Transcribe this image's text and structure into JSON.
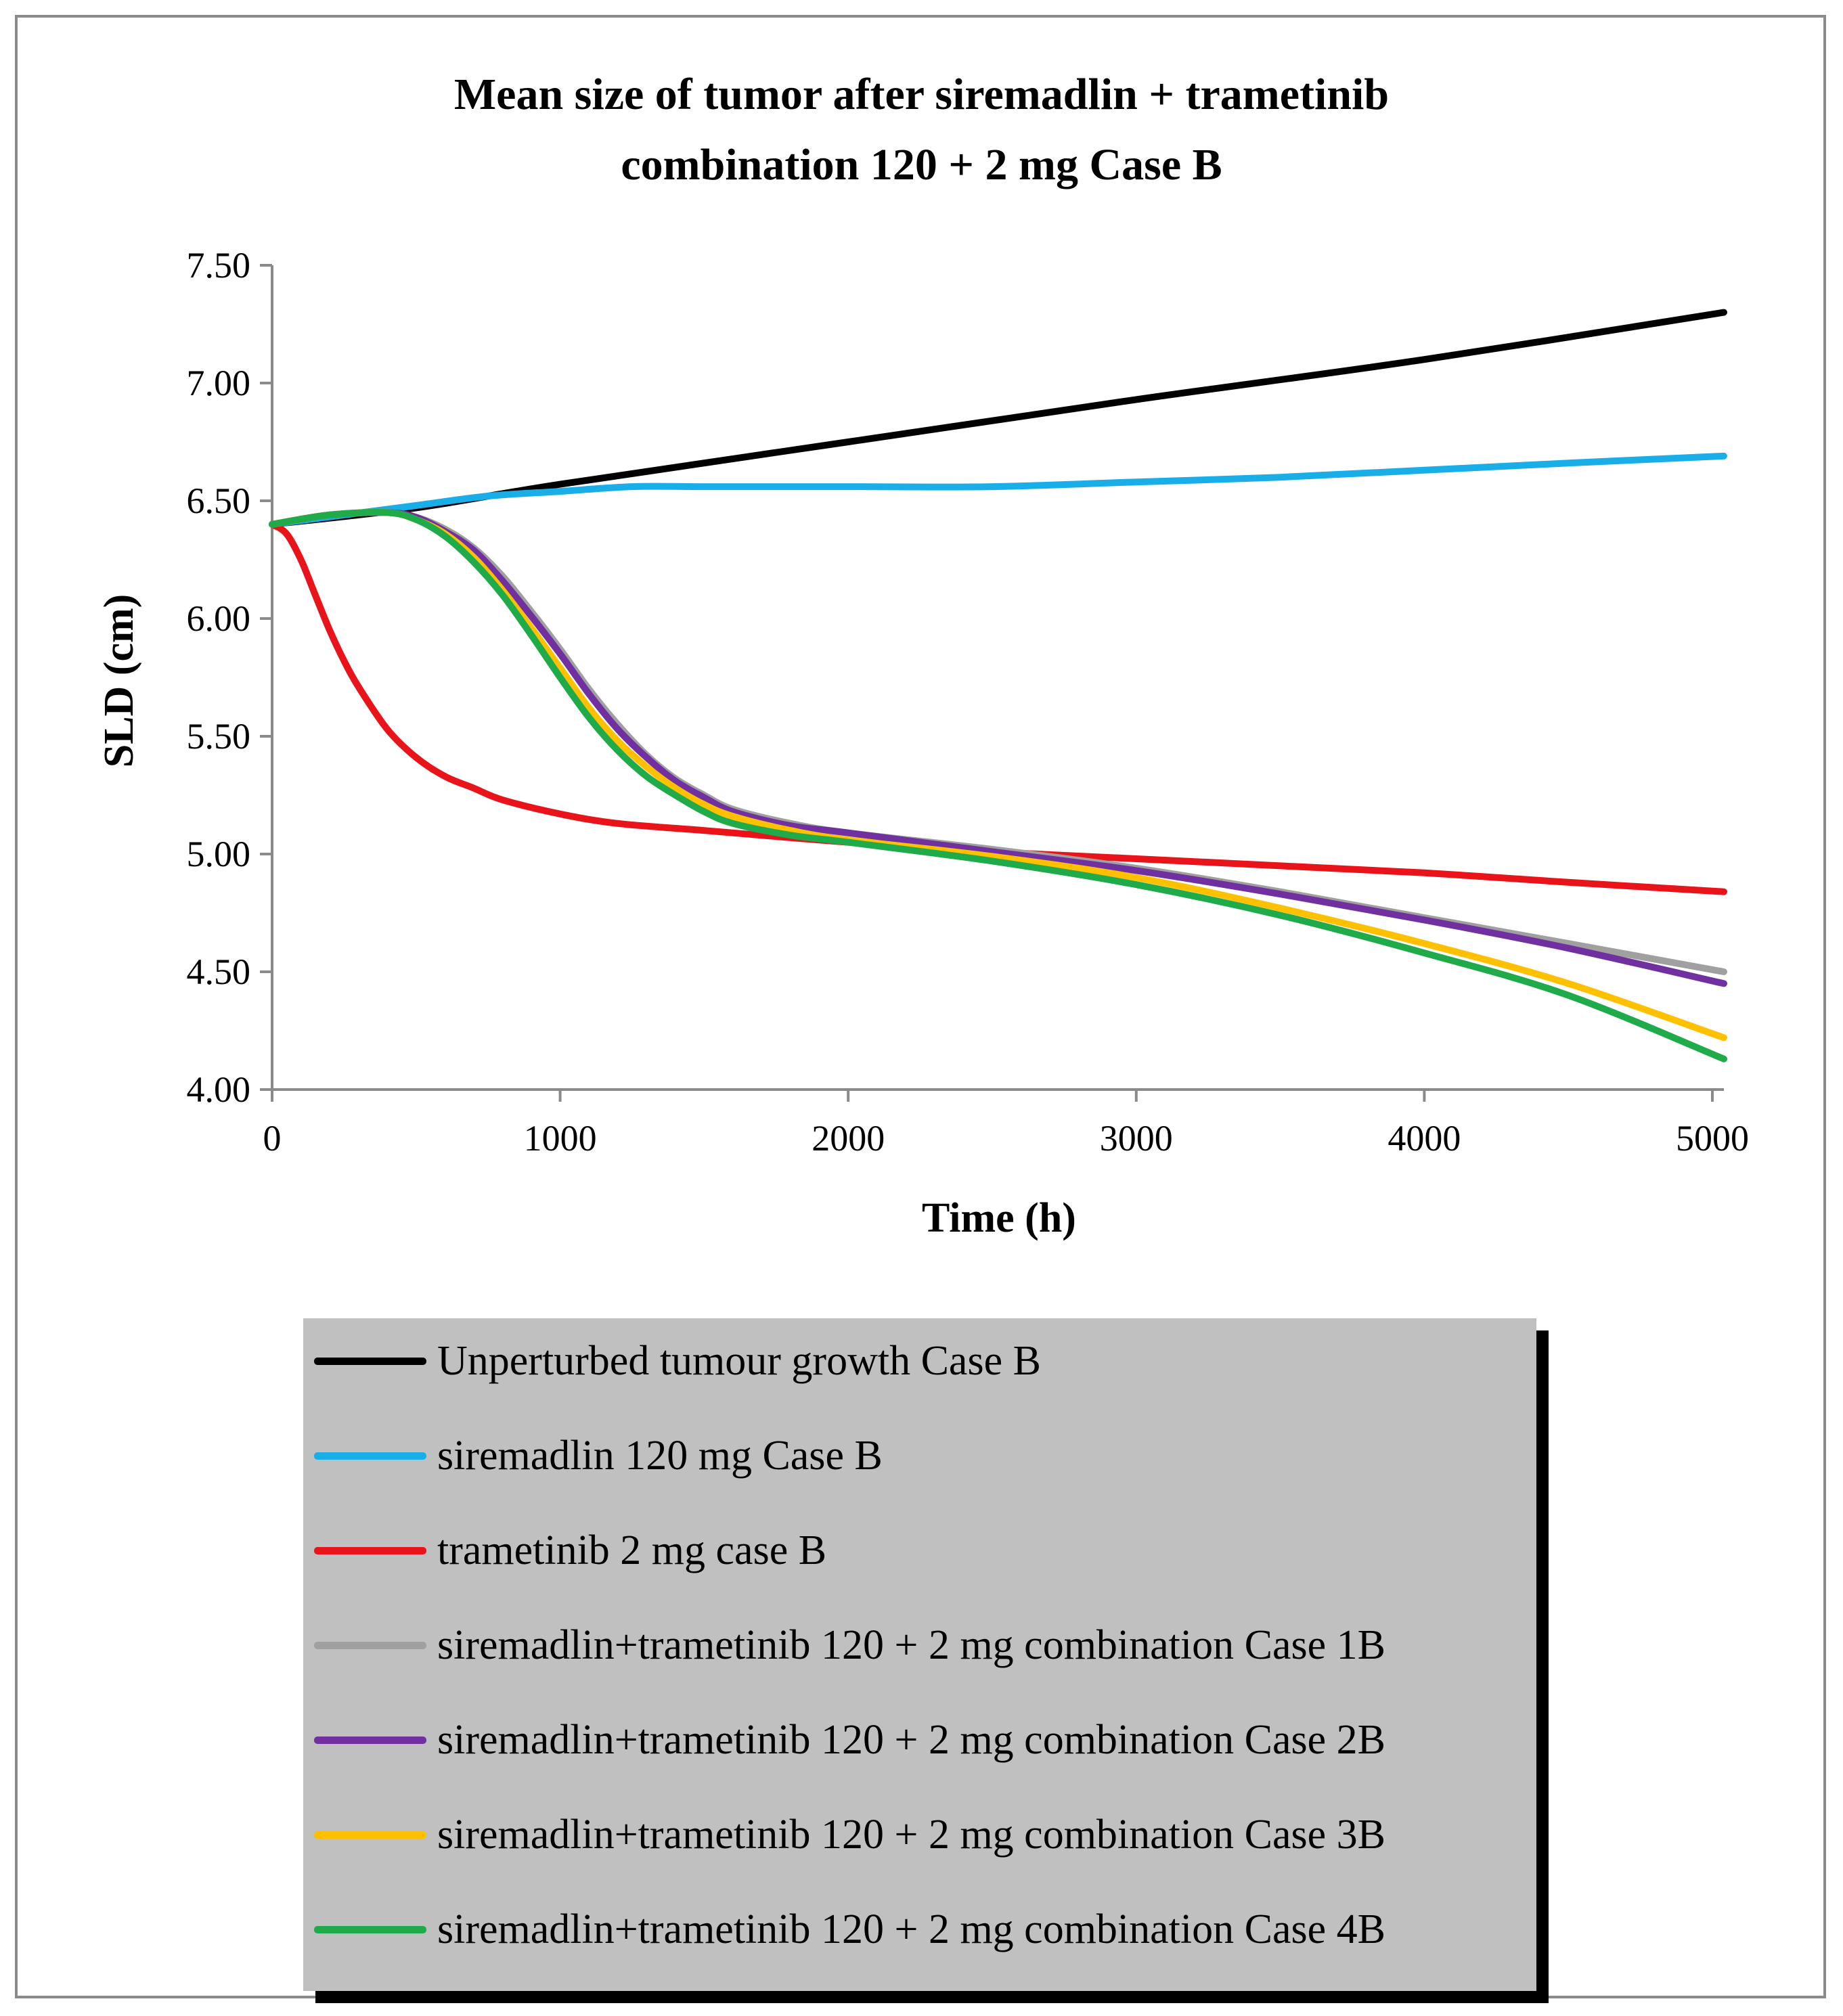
{
  "chart_data": {
    "type": "line",
    "title_lines": [
      "Mean size of tumor after siremadlin + trametinib",
      "combination 120 + 2 mg Case B"
    ],
    "xlabel": "Time (h)",
    "ylabel": "SLD (cm)",
    "xlim": [
      0,
      5040
    ],
    "ylim": [
      4.0,
      7.5
    ],
    "x_ticks": [
      0,
      1000,
      2000,
      3000,
      4000,
      5000
    ],
    "x_tick_labels": [
      "0",
      "1000",
      "2000",
      "3000",
      "4000",
      "5000"
    ],
    "y_ticks": [
      4.0,
      4.5,
      5.0,
      5.5,
      6.0,
      6.5,
      7.0,
      7.5
    ],
    "y_tick_labels": [
      "4.00",
      "4.50",
      "5.00",
      "5.50",
      "6.00",
      "6.50",
      "7.00",
      "7.50"
    ],
    "grid": false,
    "legend_position": "bottom",
    "series": [
      {
        "name": "Unperturbed tumour growth Case B",
        "color": "#000000",
        "x": [
          0,
          500,
          1000,
          2000,
          3000,
          4000,
          5040
        ],
        "y": [
          6.4,
          6.47,
          6.57,
          6.75,
          6.93,
          7.1,
          7.3
        ]
      },
      {
        "name": "siremadlin 120 mg Case B",
        "color": "#1aaee8",
        "x": [
          0,
          250,
          500,
          750,
          1000,
          1250,
          1500,
          2000,
          2500,
          3000,
          3500,
          4000,
          4500,
          5040
        ],
        "y": [
          6.4,
          6.44,
          6.48,
          6.52,
          6.54,
          6.56,
          6.56,
          6.56,
          6.56,
          6.58,
          6.6,
          6.63,
          6.66,
          6.69
        ]
      },
      {
        "name": "trametinib 2 mg case B",
        "color": "#e8141a",
        "x": [
          0,
          50,
          100,
          150,
          200,
          250,
          300,
          400,
          500,
          600,
          700,
          800,
          1000,
          1200,
          1500,
          2000,
          2500,
          3000,
          3500,
          4000,
          4500,
          5040
        ],
        "y": [
          6.4,
          6.36,
          6.25,
          6.1,
          5.95,
          5.82,
          5.71,
          5.53,
          5.41,
          5.33,
          5.28,
          5.23,
          5.17,
          5.13,
          5.1,
          5.05,
          5.01,
          4.98,
          4.95,
          4.92,
          4.88,
          4.84
        ]
      },
      {
        "name": "siremadlin+trametinib 120 + 2 mg combination Case 1B",
        "color": "#a0a0a0",
        "x": [
          0,
          200,
          400,
          500,
          600,
          700,
          800,
          900,
          1000,
          1100,
          1200,
          1300,
          1400,
          1500,
          1600,
          1800,
          2000,
          2500,
          3000,
          3500,
          4000,
          4500,
          5040
        ],
        "y": [
          6.4,
          6.44,
          6.45,
          6.43,
          6.38,
          6.3,
          6.18,
          6.03,
          5.87,
          5.7,
          5.55,
          5.42,
          5.32,
          5.25,
          5.19,
          5.13,
          5.09,
          5.02,
          4.94,
          4.84,
          4.73,
          4.62,
          4.5
        ]
      },
      {
        "name": "siremadlin+trametinib 120 + 2 mg combination Case 2B",
        "color": "#7030a0",
        "x": [
          0,
          200,
          400,
          500,
          600,
          700,
          800,
          900,
          1000,
          1100,
          1200,
          1300,
          1400,
          1500,
          1600,
          1800,
          2000,
          2500,
          3000,
          3500,
          4000,
          4500,
          5040
        ],
        "y": [
          6.4,
          6.44,
          6.45,
          6.43,
          6.37,
          6.29,
          6.16,
          6.01,
          5.85,
          5.68,
          5.53,
          5.41,
          5.31,
          5.24,
          5.18,
          5.12,
          5.09,
          5.01,
          4.93,
          4.83,
          4.72,
          4.6,
          4.45
        ]
      },
      {
        "name": "siremadlin+trametinib 120 + 2 mg combination Case 3B",
        "color": "#ffc000",
        "x": [
          0,
          200,
          400,
          500,
          600,
          700,
          800,
          900,
          1000,
          1100,
          1200,
          1300,
          1400,
          1500,
          1600,
          1800,
          2000,
          2500,
          3000,
          3500,
          4000,
          4500,
          5040
        ],
        "y": [
          6.4,
          6.44,
          6.45,
          6.42,
          6.36,
          6.26,
          6.12,
          5.96,
          5.79,
          5.62,
          5.48,
          5.37,
          5.28,
          5.21,
          5.16,
          5.1,
          5.06,
          4.99,
          4.9,
          4.77,
          4.62,
          4.45,
          4.22
        ]
      },
      {
        "name": "siremadlin+trametinib 120 + 2 mg combination Case 4B",
        "color": "#1fab4a",
        "x": [
          0,
          200,
          400,
          500,
          600,
          700,
          800,
          900,
          1000,
          1100,
          1200,
          1300,
          1400,
          1500,
          1600,
          1800,
          2000,
          2500,
          3000,
          3500,
          4000,
          4500,
          5040
        ],
        "y": [
          6.4,
          6.44,
          6.45,
          6.42,
          6.35,
          6.24,
          6.1,
          5.93,
          5.75,
          5.58,
          5.44,
          5.33,
          5.25,
          5.18,
          5.13,
          5.08,
          5.05,
          4.97,
          4.87,
          4.74,
          4.58,
          4.4,
          4.13
        ]
      }
    ]
  }
}
